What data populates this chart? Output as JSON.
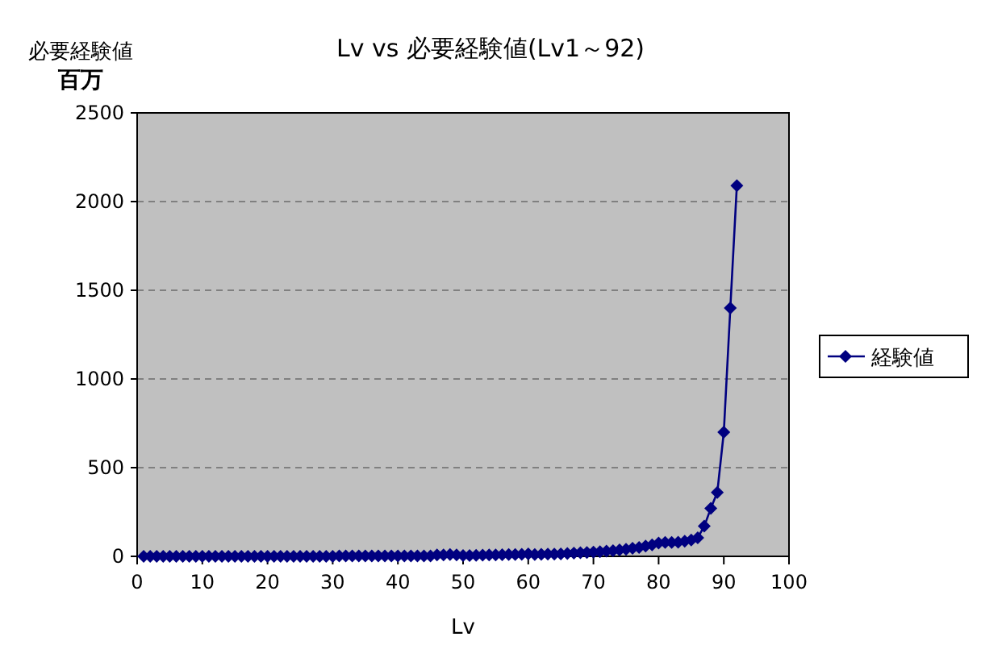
{
  "chart_data": {
    "type": "line",
    "title": "Lv vs 必要経験値(Lv1～92)",
    "xlabel": "Lv",
    "ylabel": "必要経験値",
    "annotations": [
      "百万"
    ],
    "x": [
      1,
      2,
      3,
      4,
      5,
      6,
      7,
      8,
      9,
      10,
      11,
      12,
      13,
      14,
      15,
      16,
      17,
      18,
      19,
      20,
      21,
      22,
      23,
      24,
      25,
      26,
      27,
      28,
      29,
      30,
      31,
      32,
      33,
      34,
      35,
      36,
      37,
      38,
      39,
      40,
      41,
      42,
      43,
      44,
      45,
      46,
      47,
      48,
      49,
      50,
      51,
      52,
      53,
      54,
      55,
      56,
      57,
      58,
      59,
      60,
      61,
      62,
      63,
      64,
      65,
      66,
      67,
      68,
      69,
      70,
      71,
      72,
      73,
      74,
      75,
      76,
      77,
      78,
      79,
      80,
      81,
      82,
      83,
      84,
      85,
      86,
      87,
      88,
      89,
      90,
      91,
      92
    ],
    "series": [
      {
        "name": "経験値",
        "color": "#000080",
        "values": [
          0,
          0,
          0,
          0,
          0,
          0,
          0,
          0,
          0,
          0,
          0,
          0,
          0,
          0,
          0,
          0,
          0,
          0,
          0,
          0,
          0,
          0,
          0,
          0,
          0,
          0,
          0,
          0,
          0,
          0,
          2,
          2,
          2,
          2,
          2,
          2,
          2,
          2,
          2,
          2,
          2,
          2,
          2,
          2,
          2,
          8,
          8,
          10,
          8,
          5,
          5,
          6,
          7,
          8,
          8,
          9,
          10,
          10,
          11,
          14,
          10,
          11,
          12,
          13,
          14,
          16,
          18,
          20,
          22,
          24,
          26,
          29,
          32,
          36,
          40,
          45,
          50,
          58,
          65,
          75,
          78,
          78,
          80,
          85,
          92,
          105,
          170,
          270,
          360,
          700,
          1400,
          2090
        ]
      }
    ],
    "xlim": [
      0,
      100
    ],
    "xticks": [
      0,
      10,
      20,
      30,
      40,
      50,
      60,
      70,
      80,
      90,
      100
    ],
    "ylim": [
      0,
      2500
    ],
    "yticks": [
      0,
      500,
      1000,
      1500,
      2000,
      2500
    ],
    "grid": "y",
    "legend": "right",
    "marker": "diamond",
    "line_style": "solid"
  }
}
